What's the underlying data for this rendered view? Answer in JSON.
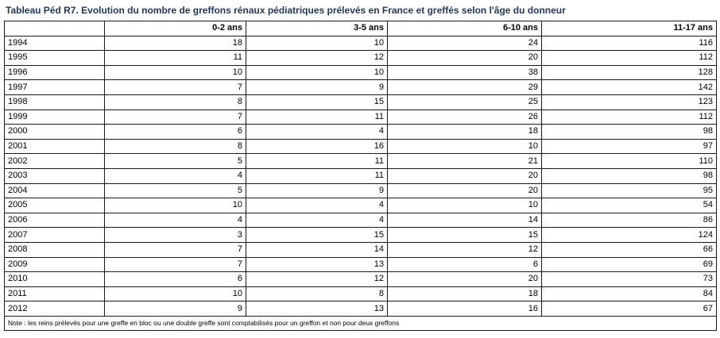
{
  "title": "Tableau Péd R7. Evolution du nombre de greffons rénaux pédiatriques prélevés en France et greffés selon l'âge du donneur",
  "table": {
    "corner": "",
    "headers": [
      "0-2 ans",
      "3-5 ans",
      "6-10 ans",
      "11-17 ans"
    ],
    "rows": [
      {
        "year": "1994",
        "values": [
          "18",
          "10",
          "24",
          "116"
        ]
      },
      {
        "year": "1995",
        "values": [
          "11",
          "12",
          "20",
          "112"
        ]
      },
      {
        "year": "1996",
        "values": [
          "10",
          "10",
          "38",
          "128"
        ]
      },
      {
        "year": "1997",
        "values": [
          "7",
          "9",
          "29",
          "142"
        ]
      },
      {
        "year": "1998",
        "values": [
          "8",
          "15",
          "25",
          "123"
        ]
      },
      {
        "year": "1999",
        "values": [
          "7",
          "11",
          "26",
          "112"
        ]
      },
      {
        "year": "2000",
        "values": [
          "6",
          "4",
          "18",
          "98"
        ]
      },
      {
        "year": "2001",
        "values": [
          "8",
          "16",
          "10",
          "97"
        ]
      },
      {
        "year": "2002",
        "values": [
          "5",
          "11",
          "21",
          "110"
        ]
      },
      {
        "year": "2003",
        "values": [
          "4",
          "11",
          "20",
          "98"
        ]
      },
      {
        "year": "2004",
        "values": [
          "5",
          "9",
          "20",
          "95"
        ]
      },
      {
        "year": "2005",
        "values": [
          "10",
          "4",
          "10",
          "54"
        ]
      },
      {
        "year": "2006",
        "values": [
          "4",
          "4",
          "14",
          "86"
        ]
      },
      {
        "year": "2007",
        "values": [
          "3",
          "15",
          "15",
          "124"
        ]
      },
      {
        "year": "2008",
        "values": [
          "7",
          "14",
          "12",
          "66"
        ]
      },
      {
        "year": "2009",
        "values": [
          "7",
          "13",
          "6",
          "69"
        ]
      },
      {
        "year": "2010",
        "values": [
          "6",
          "12",
          "20",
          "73"
        ]
      },
      {
        "year": "2011",
        "values": [
          "10",
          "8",
          "18",
          "84"
        ]
      },
      {
        "year": "2012",
        "values": [
          "9",
          "13",
          "16",
          "67"
        ]
      }
    ],
    "note": "Note : les reins prélevés pour une greffe en bloc ou une double greffe sont comptabilisés  pour un greffon et non pour deux greffons"
  }
}
